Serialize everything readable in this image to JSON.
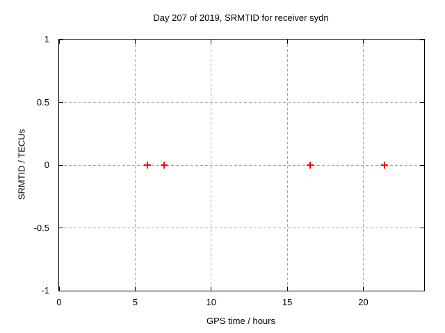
{
  "chart_data": {
    "type": "scatter",
    "title": "Day 207 of 2019, SRMTID for receiver sydn",
    "xlabel": "GPS time / hours",
    "ylabel": "SRMTID / TECUs",
    "xlim": [
      0,
      24
    ],
    "ylim": [
      -1,
      1
    ],
    "xticks": [
      0,
      5,
      10,
      15,
      20
    ],
    "yticks": [
      -1,
      -0.5,
      0,
      0.5,
      1
    ],
    "grid": true,
    "legend": "none",
    "marker_style": "plus",
    "marker_color": "#ff0000",
    "grid_color": "#a6a6a6",
    "border_color": "#000000",
    "series": [
      {
        "name": "SRMTID",
        "points": [
          {
            "x": 5.8,
            "y": 0
          },
          {
            "x": 6.9,
            "y": 0
          },
          {
            "x": 16.5,
            "y": 0
          },
          {
            "x": 21.4,
            "y": 0
          }
        ]
      }
    ]
  }
}
